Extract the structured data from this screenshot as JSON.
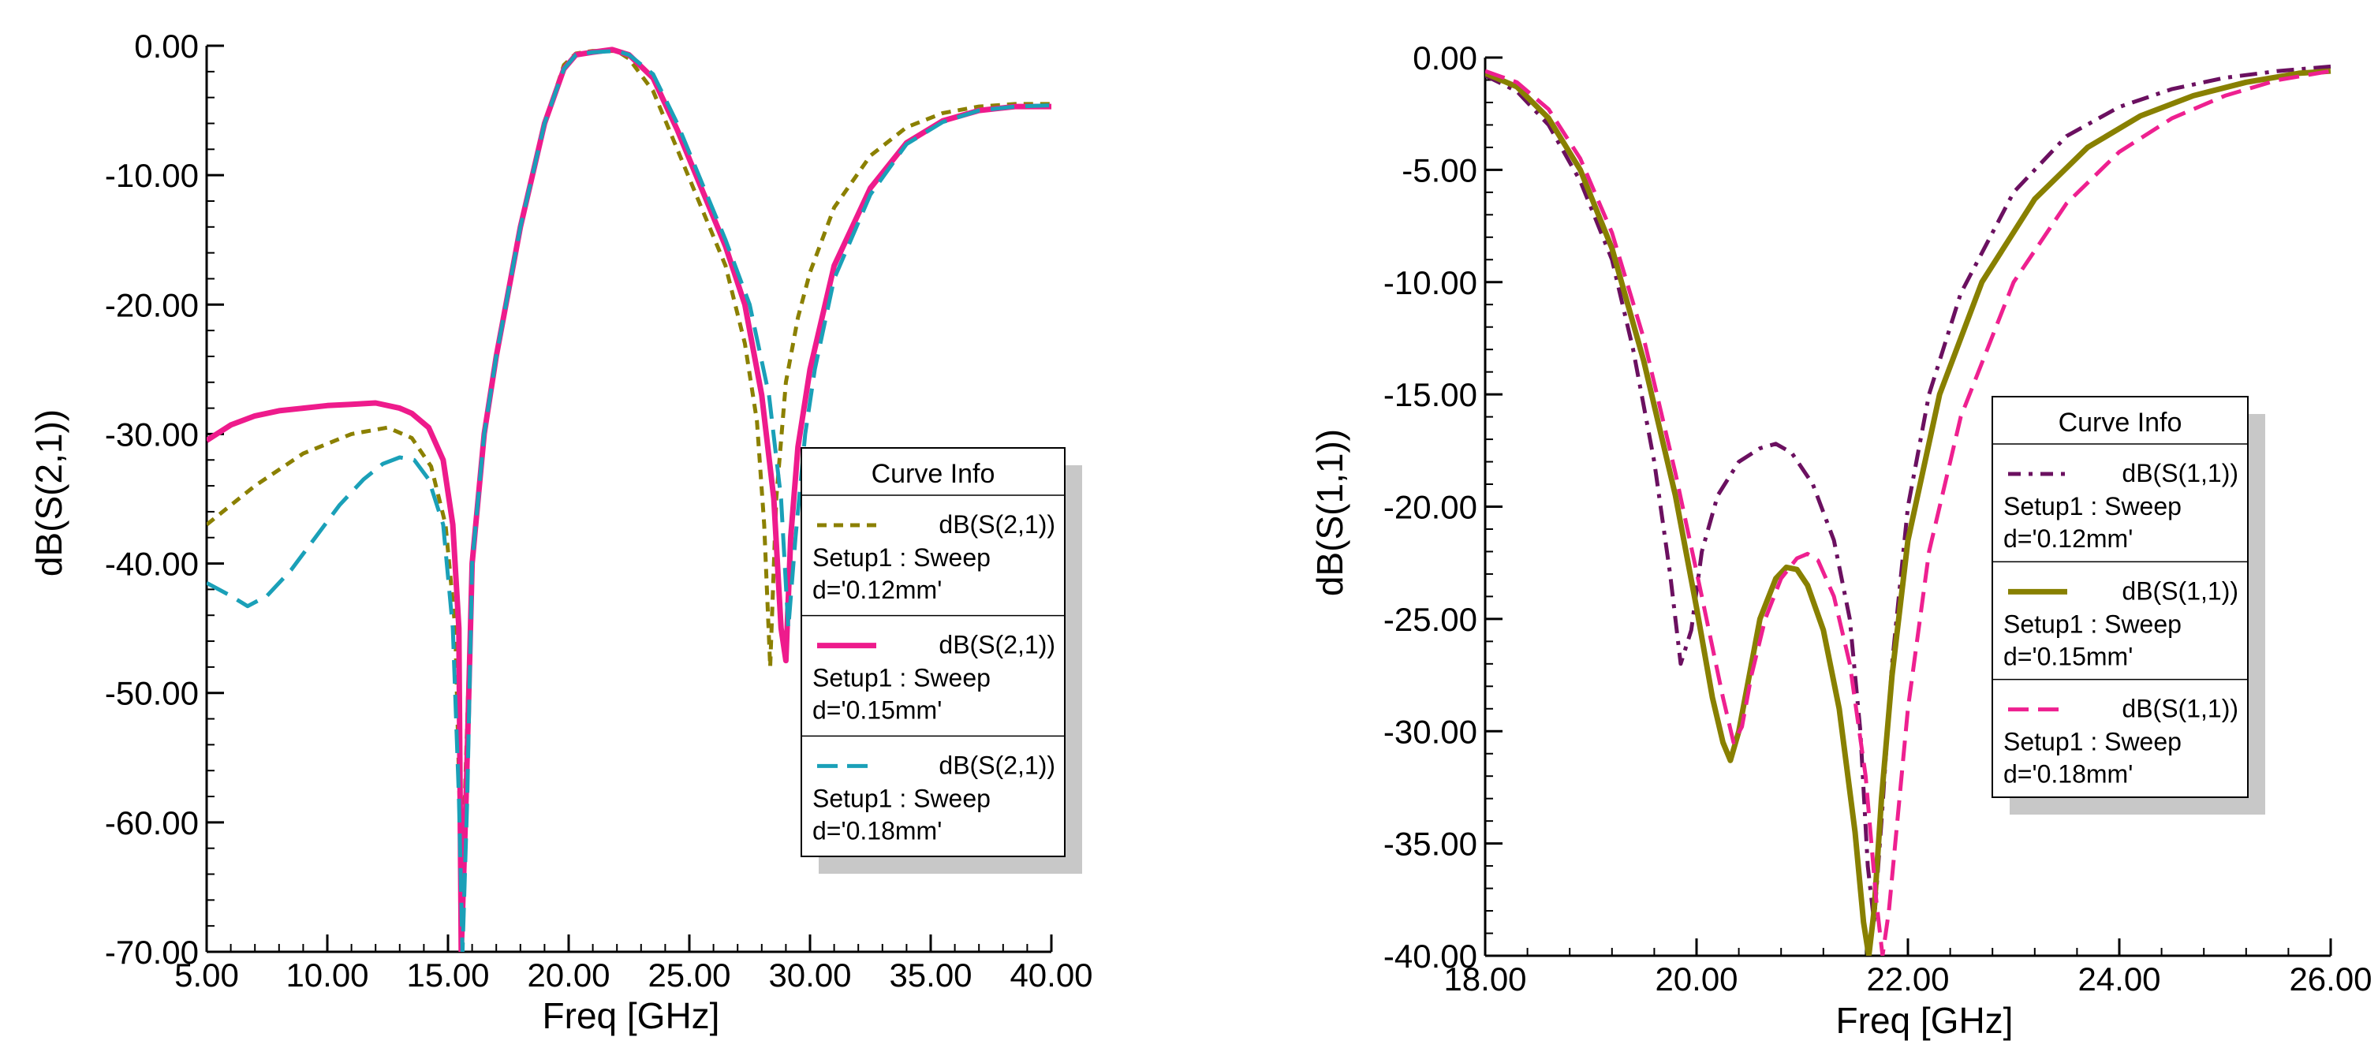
{
  "chart_data": [
    {
      "id": "s21",
      "type": "line",
      "title": "",
      "xlabel": "Freq [GHz]",
      "ylabel": "dB(S(2,1))",
      "xlim": [
        5,
        40
      ],
      "ylim": [
        -70,
        0
      ],
      "xticks": [
        5,
        10,
        15,
        20,
        25,
        30,
        35,
        40
      ],
      "xtick_labels": [
        "5.00",
        "10.00",
        "15.00",
        "20.00",
        "25.00",
        "30.00",
        "35.00",
        "40.00"
      ],
      "yticks": [
        0,
        -10,
        -20,
        -30,
        -40,
        -50,
        -60,
        -70
      ],
      "ytick_labels": [
        "0.00",
        "-10.00",
        "-20.00",
        "-30.00",
        "-40.00",
        "-50.00",
        "-60.00",
        "-70.00"
      ],
      "grid": false,
      "legend_position": "right",
      "legend": {
        "title": "Curve Info",
        "entries": [
          {
            "trace": "dB(S(2,1))",
            "setup": "Setup1 : Sweep",
            "param": "d='0.12mm'"
          },
          {
            "trace": "dB(S(2,1))",
            "setup": "Setup1 : Sweep",
            "param": "d='0.15mm'"
          },
          {
            "trace": "dB(S(2,1))",
            "setup": "Setup1 : Sweep",
            "param": "d='0.18mm'"
          }
        ]
      },
      "series": [
        {
          "name": "d='0.12mm'",
          "color": "#8b8000",
          "dash": "short",
          "x": [
            5,
            7,
            9,
            11,
            12.5,
            13.5,
            14.3,
            14.9,
            15.3,
            15.5,
            15.7,
            16,
            16.5,
            17,
            18,
            19,
            19.8,
            20.3,
            21,
            22,
            22.5,
            23.5,
            24.5,
            25.5,
            26.5,
            27.3,
            27.8,
            28.1,
            28.35,
            28.6,
            29,
            29.5,
            30,
            31,
            32.5,
            34,
            35.5,
            37,
            38.5,
            40
          ],
          "y": [
            -37,
            -34,
            -31.5,
            -30,
            -29.5,
            -30.3,
            -32.5,
            -37,
            -45,
            -60,
            -58,
            -40,
            -30,
            -24,
            -14,
            -6,
            -1.5,
            -0.6,
            -0.4,
            -0.4,
            -1,
            -3.5,
            -8,
            -12.5,
            -17,
            -23,
            -29,
            -37,
            -48,
            -35,
            -26,
            -21,
            -17.5,
            -12.5,
            -8.5,
            -6.3,
            -5.2,
            -4.7,
            -4.5,
            -4.5
          ]
        },
        {
          "name": "d='0.15mm'",
          "color": "#ee1b8c",
          "dash": "solid",
          "x": [
            5,
            6,
            7,
            8,
            9,
            10,
            11,
            12,
            13,
            13.5,
            14.2,
            14.8,
            15.2,
            15.45,
            15.55,
            15.75,
            16,
            16.5,
            17,
            18,
            19,
            19.8,
            20.3,
            21,
            21.8,
            22.5,
            23.5,
            24.5,
            25.5,
            26.5,
            27.3,
            28,
            28.5,
            28.8,
            29,
            29.2,
            29.5,
            30,
            31,
            32.5,
            34,
            35.5,
            37,
            38.5,
            40
          ],
          "y": [
            -30.5,
            -29.3,
            -28.6,
            -28.2,
            -28,
            -27.8,
            -27.7,
            -27.6,
            -28,
            -28.4,
            -29.5,
            -32,
            -37,
            -45,
            -70,
            -58,
            -40,
            -30,
            -24,
            -14,
            -6,
            -1.8,
            -0.7,
            -0.5,
            -0.3,
            -0.7,
            -2.5,
            -6.5,
            -11,
            -15.5,
            -20,
            -27,
            -35,
            -45,
            -47.5,
            -38,
            -31,
            -25,
            -17,
            -11,
            -7.5,
            -5.8,
            -5,
            -4.7,
            -4.7
          ]
        },
        {
          "name": "d='0.18mm'",
          "color": "#1aa0b8",
          "dash": "long",
          "x": [
            5,
            6,
            6.7,
            7.5,
            8.5,
            9.5,
            10.5,
            11.5,
            12.3,
            13,
            13.6,
            14.2,
            14.8,
            15.2,
            15.45,
            15.6,
            15.8,
            16,
            16.5,
            17,
            18,
            19,
            19.8,
            20.3,
            21,
            22,
            22.5,
            23.5,
            24.5,
            25.5,
            26.5,
            27.5,
            28.3,
            28.8,
            29.1,
            29.4,
            29.8,
            30.2,
            31,
            32.5,
            34,
            35.5,
            37,
            38.5,
            40
          ],
          "y": [
            -41.5,
            -42.5,
            -43.3,
            -42.5,
            -40.5,
            -38,
            -35.5,
            -33.5,
            -32.3,
            -31.8,
            -32,
            -33.5,
            -37,
            -45,
            -58,
            -70,
            -58,
            -40,
            -30,
            -24,
            -14,
            -6,
            -1.8,
            -0.7,
            -0.5,
            -0.4,
            -0.7,
            -2.2,
            -6,
            -10.5,
            -15,
            -20,
            -27,
            -35,
            -45,
            -38,
            -30,
            -25,
            -18,
            -11.5,
            -7.6,
            -5.9,
            -5,
            -4.7,
            -4.6
          ]
        }
      ]
    },
    {
      "id": "s11",
      "type": "line",
      "title": "",
      "xlabel": "Freq [GHz]",
      "ylabel": "dB(S(1,1))",
      "xlim": [
        18,
        26
      ],
      "ylim": [
        -40,
        0
      ],
      "xticks": [
        18,
        20,
        22,
        24,
        26
      ],
      "xtick_labels": [
        "18.00",
        "20.00",
        "22.00",
        "24.00",
        "26.00"
      ],
      "yticks": [
        0,
        -5,
        -10,
        -15,
        -20,
        -25,
        -30,
        -35,
        -40
      ],
      "ytick_labels": [
        "0.00",
        "-5.00",
        "-10.00",
        "-15.00",
        "-20.00",
        "-25.00",
        "-30.00",
        "-35.00",
        "-40.00"
      ],
      "grid": false,
      "legend_position": "right",
      "legend": {
        "title": "Curve Info",
        "entries": [
          {
            "trace": "dB(S(1,1))",
            "setup": "Setup1 : Sweep",
            "param": "d='0.12mm'"
          },
          {
            "trace": "dB(S(1,1))",
            "setup": "Setup1 : Sweep",
            "param": "d='0.15mm'"
          },
          {
            "trace": "dB(S(1,1))",
            "setup": "Setup1 : Sweep",
            "param": "d='0.18mm'"
          }
        ]
      },
      "series": [
        {
          "name": "d='0.12mm'",
          "color": "#6b1060",
          "dash": "dashdot",
          "x": [
            18,
            18.3,
            18.6,
            18.9,
            19.2,
            19.4,
            19.6,
            19.75,
            19.85,
            19.95,
            20.05,
            20.2,
            20.4,
            20.6,
            20.75,
            20.9,
            21.1,
            21.3,
            21.45,
            21.55,
            21.62,
            21.68,
            21.75,
            21.85,
            22,
            22.2,
            22.5,
            23,
            23.5,
            24,
            24.5,
            25,
            25.5,
            26
          ],
          "y": [
            -0.8,
            -1.5,
            -3,
            -5.5,
            -9,
            -13,
            -18,
            -23,
            -27,
            -25.5,
            -22,
            -19.5,
            -18,
            -17.4,
            -17.2,
            -17.6,
            -19,
            -21.5,
            -25,
            -30,
            -36,
            -38.5,
            -34,
            -27,
            -20,
            -15,
            -10.5,
            -6,
            -3.5,
            -2.2,
            -1.4,
            -0.9,
            -0.6,
            -0.4
          ]
        },
        {
          "name": "d='0.15mm'",
          "color": "#888000",
          "dash": "solid",
          "x": [
            18,
            18.3,
            18.6,
            18.9,
            19.2,
            19.5,
            19.8,
            20,
            20.15,
            20.25,
            20.32,
            20.4,
            20.5,
            20.6,
            20.75,
            20.85,
            20.95,
            21.05,
            21.2,
            21.35,
            21.5,
            21.58,
            21.63,
            21.68,
            21.75,
            21.85,
            22,
            22.3,
            22.7,
            23.2,
            23.7,
            24.2,
            24.7,
            25.2,
            25.7,
            26
          ],
          "y": [
            -0.7,
            -1.3,
            -2.7,
            -5,
            -8.5,
            -13.5,
            -19.5,
            -24.5,
            -28.5,
            -30.5,
            -31.3,
            -30,
            -27.5,
            -25,
            -23.2,
            -22.7,
            -22.8,
            -23.5,
            -25.5,
            -29,
            -34.5,
            -38.5,
            -40,
            -38,
            -33,
            -27.5,
            -21.5,
            -15,
            -10,
            -6.3,
            -4,
            -2.6,
            -1.7,
            -1.1,
            -0.7,
            -0.6
          ]
        },
        {
          "name": "d='0.18mm'",
          "color": "#ee2090",
          "dash": "dash",
          "x": [
            18,
            18.3,
            18.6,
            18.9,
            19.2,
            19.5,
            19.8,
            20.05,
            20.25,
            20.35,
            20.43,
            20.52,
            20.65,
            20.8,
            20.95,
            21.05,
            21.15,
            21.3,
            21.45,
            21.6,
            21.7,
            21.76,
            21.82,
            21.9,
            22,
            22.2,
            22.5,
            23,
            23.5,
            24,
            24.5,
            25,
            25.5,
            26
          ],
          "y": [
            -0.6,
            -1.1,
            -2.3,
            -4.5,
            -7.8,
            -12.5,
            -18.5,
            -24,
            -28.5,
            -30.5,
            -29.8,
            -27.5,
            -25,
            -23.2,
            -22.3,
            -22.1,
            -22.4,
            -24,
            -27,
            -32,
            -37.5,
            -40,
            -38,
            -34,
            -29,
            -22,
            -16,
            -10,
            -6.5,
            -4.2,
            -2.7,
            -1.7,
            -1,
            -0.6
          ]
        }
      ]
    }
  ]
}
